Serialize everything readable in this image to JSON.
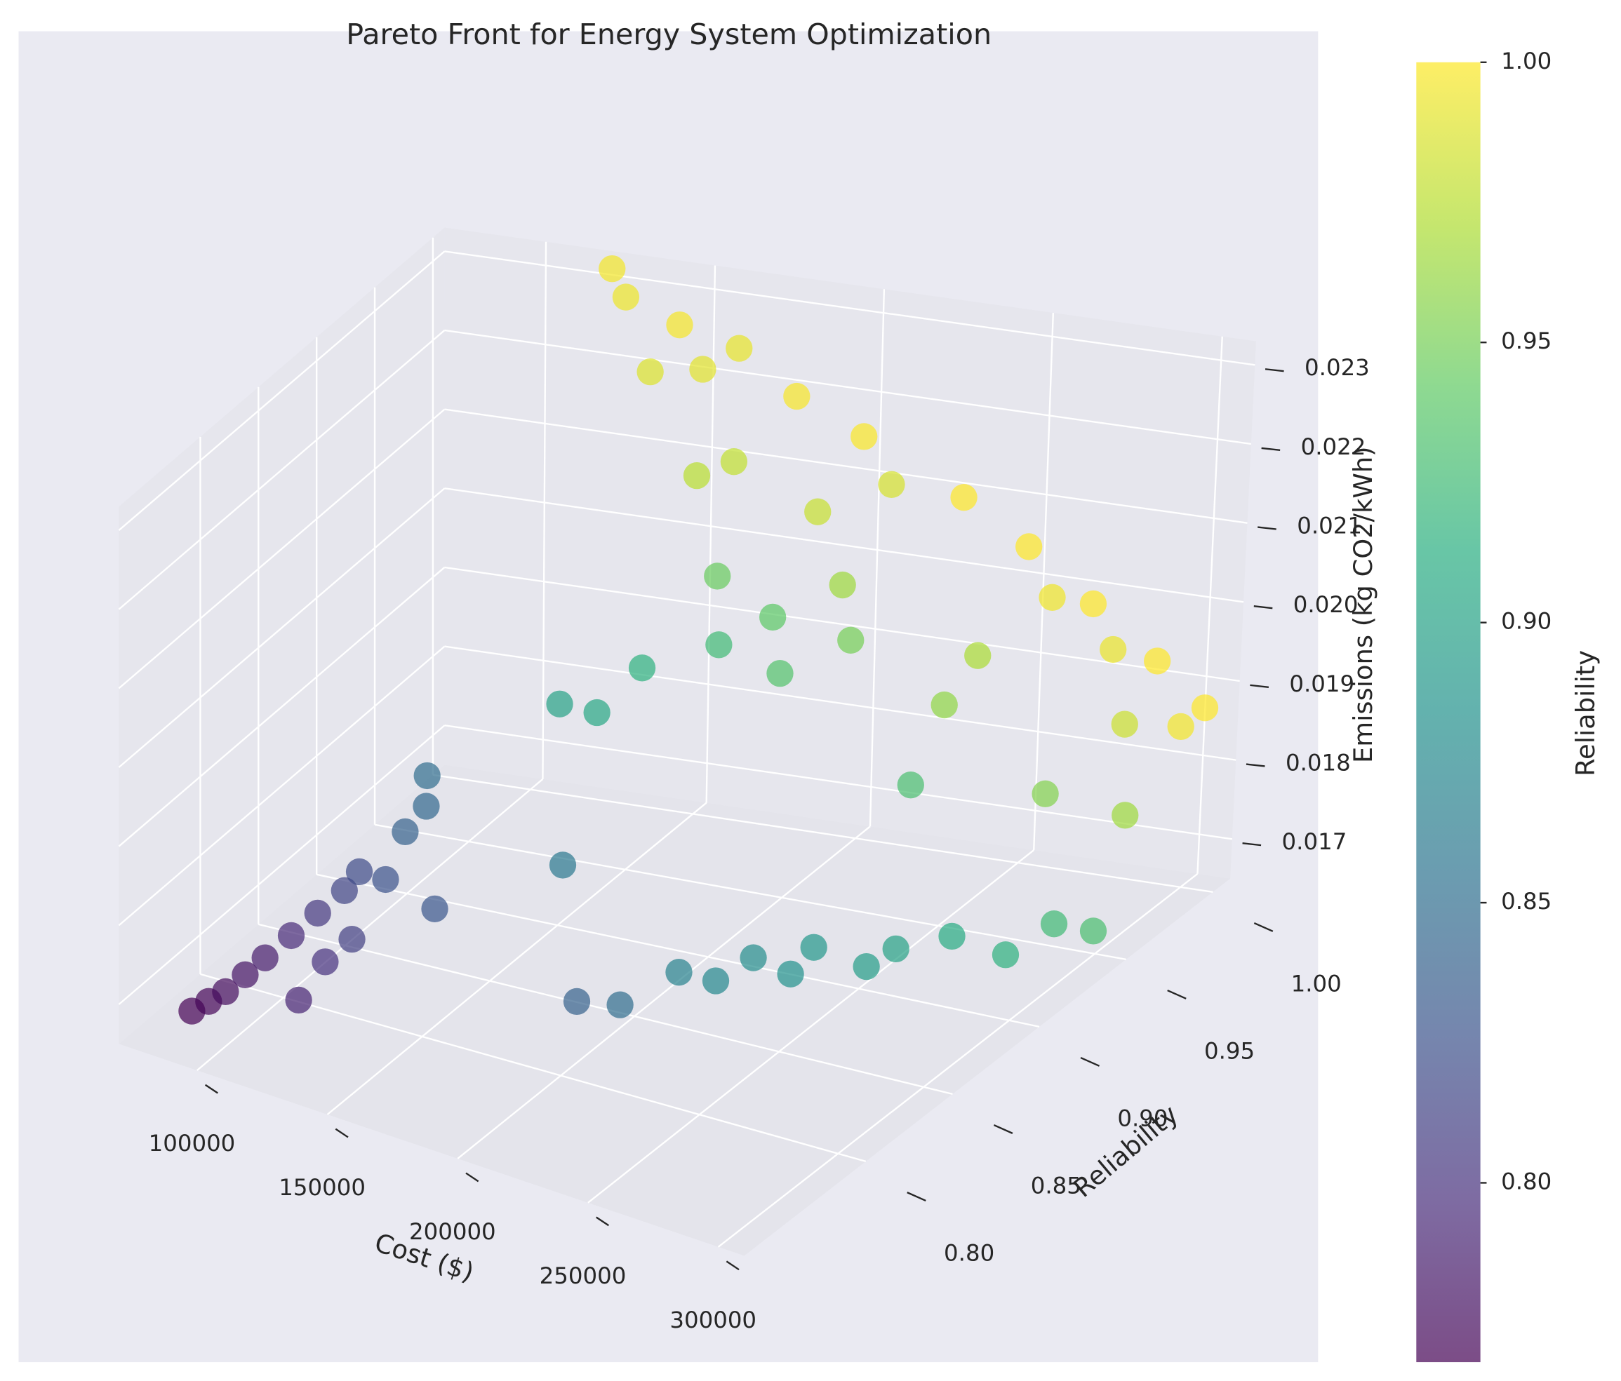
{
  "chart_data": {
    "type": "scatter3d",
    "title": "Pareto Front for Energy System Optimization",
    "x_label": "Cost ($)",
    "y_label": "Reliability",
    "z_label": "Emissions (kg CO2/kWh)",
    "colorbar_label": "Reliability",
    "colormap": "viridis",
    "alpha": 0.7,
    "grid": true,
    "xlim": [
      70000,
      310000
    ],
    "ylim": [
      0.73,
      1.01
    ],
    "zlim": [
      0.0165,
      0.0233
    ],
    "clim": [
      0.768,
      1.0
    ],
    "xticks": [
      100000,
      150000,
      200000,
      250000,
      300000
    ],
    "yticks": [
      {
        "value": 0.8,
        "label": "0.80"
      },
      {
        "value": 0.85,
        "label": "0.85"
      },
      {
        "value": 0.9,
        "label": "0.90"
      },
      {
        "value": 0.95,
        "label": "0.95"
      },
      {
        "value": 1.0,
        "label": "1.00"
      }
    ],
    "zticks": [
      0.017,
      0.018,
      0.019,
      {
        "value": 0.02,
        "label": "0.020"
      },
      0.021,
      0.022,
      0.023
    ],
    "cticks": [
      {
        "value": 0.8,
        "label": "0.80"
      },
      {
        "value": 0.85,
        "label": "0.85"
      },
      {
        "value": 0.9,
        "label": "0.90"
      },
      {
        "value": 0.95,
        "label": "0.95"
      },
      {
        "value": 1.0,
        "label": "1.00"
      }
    ],
    "x": [
      82000,
      86000,
      90000,
      95000,
      100000,
      110000,
      105000,
      115000,
      110000,
      120000,
      115000,
      118000,
      125000,
      140000,
      125000,
      130000,
      128000,
      185000,
      195000,
      170000,
      205000,
      215000,
      225000,
      235000,
      240000,
      255000,
      262000,
      150000,
      160000,
      275000,
      290000,
      170000,
      300000,
      190000,
      310000,
      250000,
      205000,
      200000,
      180000,
      220000,
      280000,
      245000,
      300000,
      210000,
      250000,
      160000,
      170000,
      195000,
      290000,
      215000,
      140000,
      155000,
      165000,
      130000,
      125000,
      145000,
      180000,
      200000,
      230000,
      250000,
      270000,
      290000,
      305000,
      260000,
      280000,
      300000
    ],
    "y": [
      0.765,
      0.77,
      0.775,
      0.78,
      0.785,
      0.79,
      0.795,
      0.8,
      0.805,
      0.81,
      0.815,
      0.82,
      0.825,
      0.83,
      0.84,
      0.845,
      0.85,
      0.84,
      0.85,
      0.86,
      0.87,
      0.875,
      0.88,
      0.885,
      0.89,
      0.895,
      0.9,
      0.9,
      0.905,
      0.91,
      0.915,
      0.915,
      0.925,
      0.925,
      0.93,
      0.93,
      0.935,
      0.94,
      0.945,
      0.95,
      0.955,
      0.96,
      0.965,
      0.965,
      0.97,
      0.975,
      0.978,
      0.98,
      0.982,
      0.985,
      0.988,
      0.99,
      0.992,
      0.994,
      0.996,
      0.997,
      0.998,
      0.999,
      1.0,
      1.0,
      1.0,
      1.0,
      1.0,
      0.995,
      0.993,
      0.996
    ],
    "z": [
      0.0166,
      0.0167,
      0.0168,
      0.017,
      0.0172,
      0.0167,
      0.0174,
      0.0171,
      0.0176,
      0.0173,
      0.0178,
      0.018,
      0.0179,
      0.0176,
      0.0183,
      0.0186,
      0.0189,
      0.0167,
      0.0166,
      0.018,
      0.0168,
      0.0167,
      0.017,
      0.0168,
      0.0171,
      0.0169,
      0.0171,
      0.0193,
      0.0192,
      0.0172,
      0.017,
      0.0197,
      0.0173,
      0.02,
      0.0172,
      0.0186,
      0.0196,
      0.0202,
      0.0205,
      0.0199,
      0.0183,
      0.0191,
      0.018,
      0.0203,
      0.0196,
      0.0212,
      0.0214,
      0.0209,
      0.0188,
      0.0213,
      0.0222,
      0.0223,
      0.0226,
      0.023,
      0.0233,
      0.0227,
      0.022,
      0.0216,
      0.021,
      0.0205,
      0.0199,
      0.0193,
      0.0188,
      0.02,
      0.0195,
      0.0186
    ]
  }
}
